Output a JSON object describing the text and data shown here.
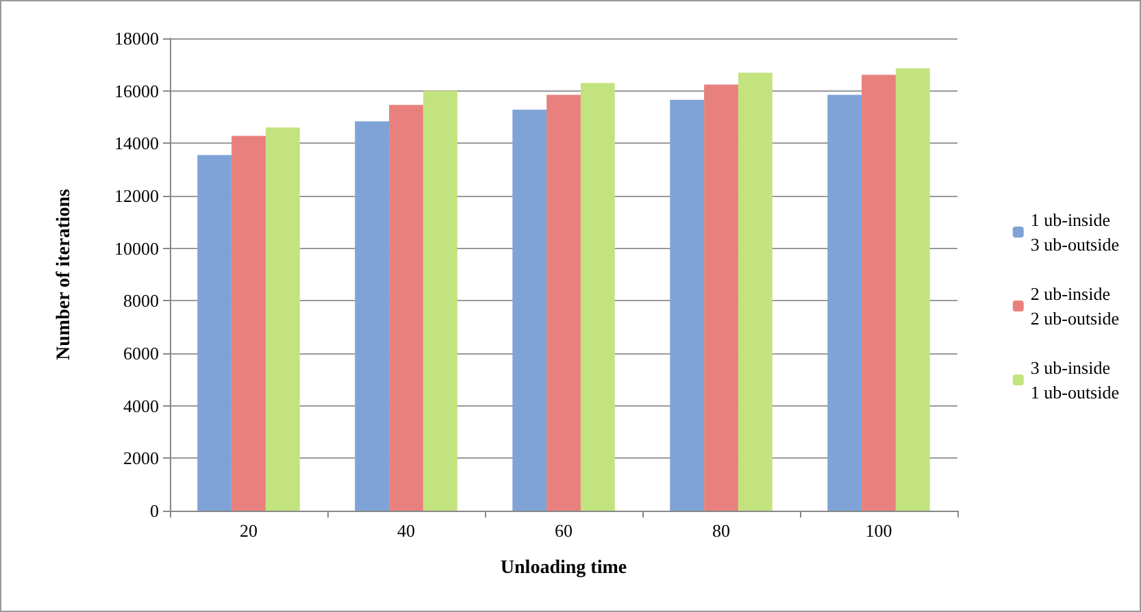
{
  "chart_data": {
    "type": "bar",
    "xlabel": "Unloading time",
    "ylabel": "Number of iterations",
    "categories": [
      "20",
      "40",
      "60",
      "80",
      "100"
    ],
    "series": [
      {
        "name": "1 ub-inside\n3 ub-outside",
        "color": "#7fa3d6",
        "values": [
          13550,
          14840,
          15280,
          15660,
          15850
        ]
      },
      {
        "name": "2 ub-inside\n2 ub-outside",
        "color": "#e8817d",
        "values": [
          14280,
          15460,
          15850,
          16240,
          16610
        ]
      },
      {
        "name": "3 ub-inside\n1 ub-outside",
        "color": "#c3e37f",
        "values": [
          14600,
          16000,
          16300,
          16690,
          16860
        ]
      }
    ],
    "ylim": [
      0,
      18000
    ],
    "yticks": [
      0,
      2000,
      4000,
      6000,
      8000,
      10000,
      12000,
      14000,
      16000,
      18000
    ],
    "grid": "y",
    "legend": "right"
  }
}
